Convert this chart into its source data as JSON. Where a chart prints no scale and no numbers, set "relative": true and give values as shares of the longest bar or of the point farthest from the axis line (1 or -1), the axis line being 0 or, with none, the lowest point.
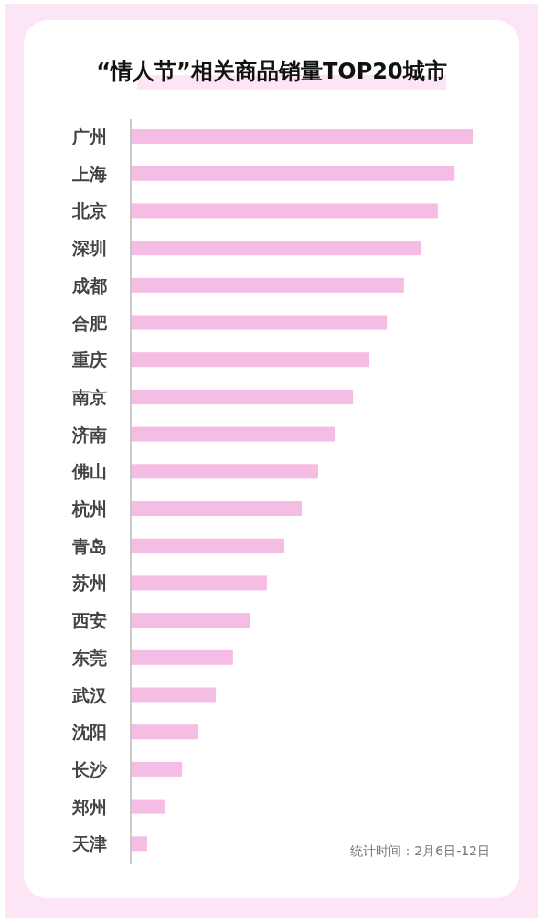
{
  "chart_data": {
    "type": "bar",
    "orientation": "horizontal",
    "relative": true,
    "title": "“情人节”相关商品销量TOP20城市",
    "categories": [
      "广州",
      "上海",
      "北京",
      "深圳",
      "成都",
      "合肥",
      "重庆",
      "南京",
      "济南",
      "佛山",
      "杭州",
      "青岛",
      "苏州",
      "西安",
      "东莞",
      "武汉",
      "沈阳",
      "长沙",
      "郑州",
      "天津"
    ],
    "values": [
      1,
      0.947,
      0.898,
      0.848,
      0.799,
      0.749,
      0.698,
      0.65,
      0.599,
      0.548,
      0.5,
      0.449,
      0.398,
      0.35,
      0.299,
      0.249,
      0.198,
      0.15,
      0.099,
      0.048
    ],
    "color": "#f5bde3",
    "annotations": [
      "统计时间：2月6日-12日"
    ]
  }
}
